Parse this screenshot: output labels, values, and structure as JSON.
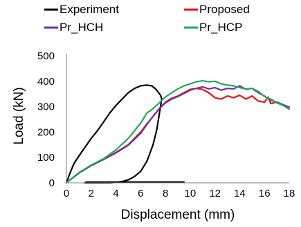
{
  "chart_data": {
    "type": "line",
    "title": "",
    "xlabel": "Displacement (mm)",
    "ylabel": "Load (kN)",
    "xlim": [
      0,
      18
    ],
    "ylim": [
      0,
      500
    ],
    "xticks": [
      0,
      2,
      4,
      6,
      8,
      10,
      12,
      14,
      16,
      18
    ],
    "yticks": [
      0,
      100,
      200,
      300,
      400,
      500
    ],
    "grid": false,
    "legend_position": "top",
    "series": [
      {
        "name": "Experiment",
        "color": "#000000",
        "x": [
          0,
          0.3,
          0.6,
          1.0,
          1.5,
          2.0,
          2.5,
          3.0,
          3.5,
          4.0,
          4.5,
          5.0,
          5.5,
          6.0,
          6.5,
          6.9,
          7.2,
          7.4,
          7.6,
          7.7,
          7.5,
          7.3,
          7.0,
          6.5,
          6.0,
          5.5,
          5.0,
          4.5,
          4.0,
          3.5,
          3.0,
          2.5,
          2.0,
          1.5,
          1.6,
          3.0,
          5.0,
          7.0,
          9.5
        ],
        "y": [
          0,
          40,
          75,
          105,
          140,
          175,
          205,
          240,
          275,
          305,
          330,
          355,
          372,
          382,
          385,
          382,
          370,
          358,
          345,
          330,
          270,
          210,
          150,
          85,
          45,
          25,
          12,
          5,
          2,
          0,
          0,
          0,
          0,
          0,
          3,
          3,
          3,
          3,
          3
        ]
      },
      {
        "name": "Proposed",
        "color": "#ee1111",
        "x": [
          0,
          1,
          2,
          3,
          4,
          5,
          6,
          6.5,
          7,
          7.5,
          8,
          8.5,
          9,
          9.5,
          10,
          10.5,
          11,
          11.5,
          12,
          12.5,
          13,
          13.5,
          14,
          14.5,
          15,
          15.5,
          16,
          16.3,
          16.5,
          17,
          17.5,
          18
        ],
        "y": [
          0,
          38,
          68,
          92,
          120,
          150,
          200,
          232,
          262,
          293,
          318,
          333,
          342,
          355,
          368,
          372,
          368,
          355,
          335,
          330,
          342,
          335,
          345,
          330,
          342,
          322,
          318,
          338,
          312,
          318,
          306,
          298
        ]
      },
      {
        "name": "Pr_HCH",
        "color": "#7030a0",
        "x": [
          0,
          1,
          2,
          3,
          4,
          5,
          6,
          6.5,
          7,
          7.5,
          8,
          8.5,
          9,
          9.5,
          10,
          10.5,
          11,
          11.5,
          12,
          12.5,
          13,
          13.5,
          14,
          14.5,
          15,
          15.5,
          16,
          16.5,
          17,
          17.5,
          18
        ],
        "y": [
          0,
          38,
          68,
          92,
          118,
          148,
          195,
          230,
          262,
          292,
          315,
          330,
          340,
          352,
          365,
          372,
          378,
          370,
          375,
          365,
          372,
          370,
          382,
          368,
          372,
          355,
          342,
          325,
          318,
          308,
          298
        ]
      },
      {
        "name": "Pr_HCP",
        "color": "#21a85a",
        "x": [
          0,
          1,
          2,
          3,
          4,
          5,
          6,
          6.5,
          7,
          7.5,
          8,
          8.5,
          9,
          9.5,
          10,
          10.5,
          11,
          11.5,
          12,
          12.5,
          13,
          13.5,
          14,
          14.5,
          15,
          15.5,
          16,
          16.5,
          17,
          17.5,
          18
        ],
        "y": [
          0,
          40,
          70,
          95,
          130,
          175,
          235,
          275,
          292,
          315,
          338,
          355,
          370,
          382,
          390,
          398,
          402,
          398,
          400,
          390,
          385,
          382,
          375,
          370,
          372,
          360,
          340,
          330,
          315,
          305,
          290
        ]
      }
    ]
  }
}
